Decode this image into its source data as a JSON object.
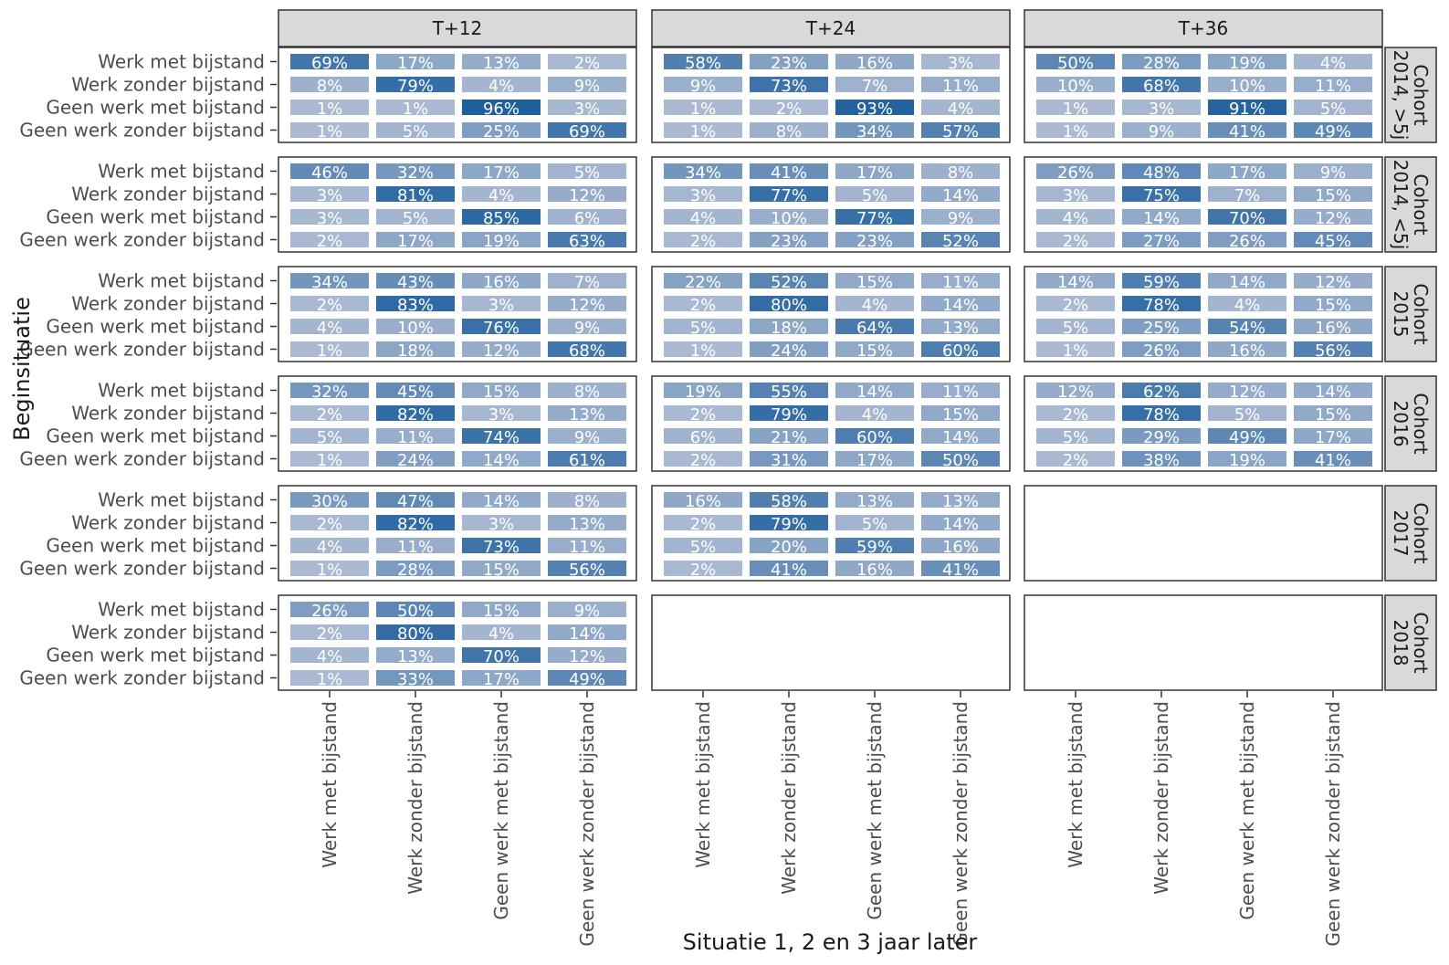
{
  "chart_data": {
    "type": "heatmap",
    "title": "",
    "xlabel": "Situatie 1, 2 en 3 jaar later",
    "ylabel": "Beginsituatie",
    "row_categories": [
      "Werk met bijstand",
      "Werk zonder bijstand",
      "Geen werk met bijstand",
      "Geen werk zonder bijstand"
    ],
    "col_categories": [
      "Werk met bijstand",
      "Werk zonder bijstand",
      "Geen werk met bijstand",
      "Geen werk zonder bijstand"
    ],
    "facet_columns": [
      "T+12",
      "T+24",
      "T+36"
    ],
    "facet_rows": [
      {
        "label": "Cohort 2014, >5j",
        "lines": [
          "Cohort",
          "2014, >5j"
        ]
      },
      {
        "label": "Cohort 2014, <5j",
        "lines": [
          "Cohort",
          "2014, <5j"
        ]
      },
      {
        "label": "Cohort 2015",
        "lines": [
          "Cohort",
          "2015"
        ]
      },
      {
        "label": "Cohort 2016",
        "lines": [
          "Cohort",
          "2016"
        ]
      },
      {
        "label": "Cohort 2017",
        "lines": [
          "Cohort",
          "2017"
        ]
      },
      {
        "label": "Cohort 2018",
        "lines": [
          "Cohort",
          "2018"
        ]
      }
    ],
    "value_unit": "%",
    "color_scale": {
      "low": "#aebcd3",
      "high": "#1a5c9c"
    },
    "panels": [
      [
        [
          [
            69,
            17,
            13,
            2
          ],
          [
            8,
            79,
            4,
            9
          ],
          [
            1,
            1,
            96,
            3
          ],
          [
            1,
            5,
            25,
            69
          ]
        ],
        [
          [
            58,
            23,
            16,
            3
          ],
          [
            9,
            73,
            7,
            11
          ],
          [
            1,
            2,
            93,
            4
          ],
          [
            1,
            8,
            34,
            57
          ]
        ],
        [
          [
            50,
            28,
            19,
            4
          ],
          [
            10,
            68,
            10,
            11
          ],
          [
            1,
            3,
            91,
            5
          ],
          [
            1,
            9,
            41,
            49
          ]
        ]
      ],
      [
        [
          [
            46,
            32,
            17,
            5
          ],
          [
            3,
            81,
            4,
            12
          ],
          [
            3,
            5,
            85,
            6
          ],
          [
            2,
            17,
            19,
            63
          ]
        ],
        [
          [
            34,
            41,
            17,
            8
          ],
          [
            3,
            77,
            5,
            14
          ],
          [
            4,
            10,
            77,
            9
          ],
          [
            2,
            23,
            23,
            52
          ]
        ],
        [
          [
            26,
            48,
            17,
            9
          ],
          [
            3,
            75,
            7,
            15
          ],
          [
            4,
            14,
            70,
            12
          ],
          [
            2,
            27,
            26,
            45
          ]
        ]
      ],
      [
        [
          [
            34,
            43,
            16,
            7
          ],
          [
            2,
            83,
            3,
            12
          ],
          [
            4,
            10,
            76,
            9
          ],
          [
            1,
            18,
            12,
            68
          ]
        ],
        [
          [
            22,
            52,
            15,
            11
          ],
          [
            2,
            80,
            4,
            14
          ],
          [
            5,
            18,
            64,
            13
          ],
          [
            1,
            24,
            15,
            60
          ]
        ],
        [
          [
            14,
            59,
            14,
            12
          ],
          [
            2,
            78,
            4,
            15
          ],
          [
            5,
            25,
            54,
            16
          ],
          [
            1,
            26,
            16,
            56
          ]
        ]
      ],
      [
        [
          [
            32,
            45,
            15,
            8
          ],
          [
            2,
            82,
            3,
            13
          ],
          [
            5,
            11,
            74,
            9
          ],
          [
            1,
            24,
            14,
            61
          ]
        ],
        [
          [
            19,
            55,
            14,
            11
          ],
          [
            2,
            79,
            4,
            15
          ],
          [
            6,
            21,
            60,
            14
          ],
          [
            2,
            31,
            17,
            50
          ]
        ],
        [
          [
            12,
            62,
            12,
            14
          ],
          [
            2,
            78,
            5,
            15
          ],
          [
            5,
            29,
            49,
            17
          ],
          [
            2,
            38,
            19,
            41
          ]
        ]
      ],
      [
        [
          [
            30,
            47,
            14,
            8
          ],
          [
            2,
            82,
            3,
            13
          ],
          [
            4,
            11,
            73,
            11
          ],
          [
            1,
            28,
            15,
            56
          ]
        ],
        [
          [
            16,
            58,
            13,
            13
          ],
          [
            2,
            79,
            5,
            14
          ],
          [
            5,
            20,
            59,
            16
          ],
          [
            2,
            41,
            16,
            41
          ]
        ],
        null
      ],
      [
        [
          [
            26,
            50,
            15,
            9
          ],
          [
            2,
            80,
            4,
            14
          ],
          [
            4,
            13,
            70,
            12
          ],
          [
            1,
            33,
            17,
            49
          ]
        ],
        null,
        null
      ]
    ]
  }
}
